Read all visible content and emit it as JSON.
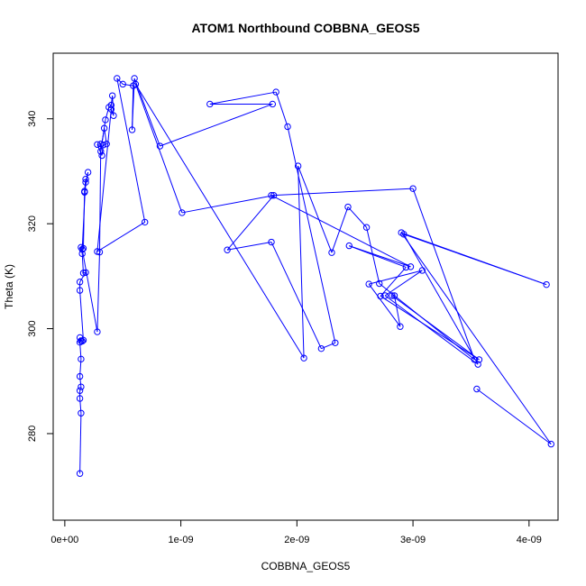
{
  "chart_data": {
    "type": "scatter",
    "title": "ATOM1 Northbound COBBNA_GEOS5",
    "xlabel": "COBBNA_GEOS5",
    "ylabel": "Theta (K)",
    "xlim": [
      -1e-10,
      4.25e-09
    ],
    "ylim": [
      263.5,
      352.5
    ],
    "x_ticks": [
      {
        "value": 0,
        "label": "0e+00"
      },
      {
        "value": 1e-09,
        "label": "1e-09"
      },
      {
        "value": 2e-09,
        "label": "2e-09"
      },
      {
        "value": 3e-09,
        "label": "3e-09"
      },
      {
        "value": 4e-09,
        "label": "4e-09"
      }
    ],
    "y_ticks": [
      {
        "value": 280,
        "label": "280"
      },
      {
        "value": 300,
        "label": "300"
      },
      {
        "value": 320,
        "label": "320"
      },
      {
        "value": 340,
        "label": "340"
      }
    ],
    "grid": false,
    "legend": "none",
    "series_color": "#0000ff",
    "marker": "open-circle",
    "connected": true,
    "series": [
      {
        "x": [
          1.3e-10,
          1.4e-10,
          1.3e-10,
          1.3e-10,
          1.4e-10,
          1.3e-10,
          1.4e-10,
          1.3e-10,
          1.3e-10,
          1.4e-10,
          1.5e-10,
          1.6e-10,
          1.3e-10,
          1.3e-10,
          1.8e-10,
          1.6e-10,
          1.5e-10,
          1.4e-10,
          1.6e-10,
          1.7e-10,
          1.8e-10,
          2e-10,
          1.7e-10,
          1.8e-10,
          1.5e-10,
          2.8e-10,
          3e-10,
          3.1e-10,
          2.8e-10,
          3.2e-10,
          3.3e-10,
          3.6e-10,
          3.4e-10,
          3.1e-10,
          3.5e-10,
          3.8e-10,
          4e-10,
          4.1e-10,
          4.2e-10,
          4e-10,
          2.8e-10,
          6.9e-10,
          4.5e-10,
          5e-10,
          5.9e-10,
          5.8e-10,
          6e-10,
          8.2e-10,
          1.79e-09,
          1.25e-09,
          1.82e-09,
          1.92e-09,
          2.33e-09,
          2.21e-09,
          1.78e-09,
          1.4e-09,
          1.8e-09,
          1.01e-09,
          6.1e-10,
          2.06e-09,
          2.01e-09,
          2.3e-09,
          2.44e-09,
          2.6e-09,
          2.71e-09,
          3.53e-09,
          3e-09,
          1.78e-09,
          2.98e-09,
          2.45e-09,
          2.94e-09,
          2.72e-09,
          3.57e-09,
          2.82e-09,
          2.84e-09,
          2.89e-09,
          2.62e-09,
          3.08e-09,
          2.76e-09,
          3.56e-09,
          2.92e-09,
          4.15e-09,
          2.9e-09,
          4.19e-09,
          3.55e-09
        ],
        "y": [
          272.4,
          283.9,
          286.7,
          288.2,
          288.9,
          290.9,
          294.2,
          297.4,
          298.3,
          297.7,
          297.6,
          297.8,
          307.3,
          308.9,
          310.7,
          310.6,
          314.3,
          315.5,
          315.3,
          326.2,
          327.9,
          329.8,
          326.0,
          328.5,
          315.1,
          299.4,
          314.6,
          335.2,
          335.1,
          333.0,
          335.0,
          335.2,
          338.2,
          333.8,
          339.8,
          342.2,
          342.6,
          344.4,
          340.6,
          341.8,
          314.7,
          320.3,
          347.7,
          346.6,
          346.3,
          337.9,
          347.7,
          334.8,
          342.8,
          342.8,
          345.1,
          338.5,
          297.3,
          296.2,
          316.5,
          315.0,
          325.4,
          322.1,
          346.6,
          294.4,
          331.0,
          314.5,
          323.2,
          319.3,
          308.6,
          294.1,
          326.7,
          325.4,
          311.8,
          315.8,
          311.7,
          306.2,
          294.1,
          306.3,
          306.3,
          300.4,
          308.5,
          311.1,
          306.3,
          293.2,
          318.0,
          308.4,
          318.3,
          278.0,
          288.5
        ]
      }
    ]
  }
}
